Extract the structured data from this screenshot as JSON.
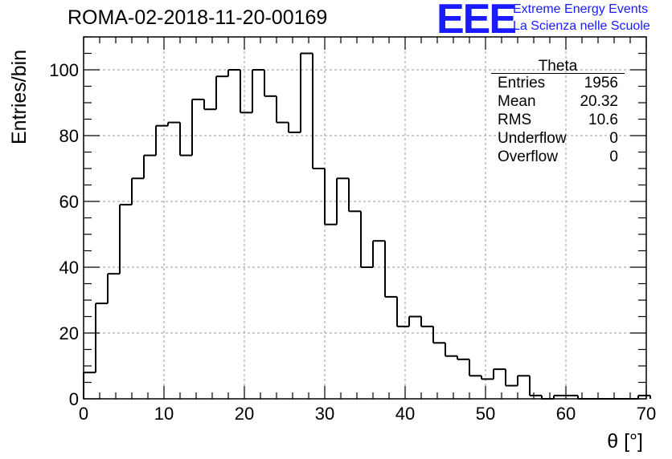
{
  "header": {
    "title": "ROMA-02-2018-11-20-00169"
  },
  "logo": {
    "mark": "EEE",
    "line1": "Extreme Energy Events",
    "line2": "La Scienza nelle Scuole",
    "color": "#1a1aff"
  },
  "stats_box": {
    "title": "Theta",
    "rows": [
      {
        "label": "Entries",
        "value": "1956"
      },
      {
        "label": "Mean",
        "value": "20.32"
      },
      {
        "label": "RMS",
        "value": "10.6"
      },
      {
        "label": "Underflow",
        "value": "0"
      },
      {
        "label": "Overflow",
        "value": "0"
      }
    ]
  },
  "chart_data": {
    "type": "bar",
    "histogram": true,
    "title": "ROMA-02-2018-11-20-00169",
    "xlabel": "θ [°]",
    "ylabel": "Entries/bin",
    "xlim": [
      0,
      70
    ],
    "ylim": [
      0,
      110
    ],
    "bin_width": 1.5,
    "x_start": 0,
    "values": [
      8,
      29,
      38,
      59,
      67,
      74,
      83,
      84,
      74,
      91,
      88,
      98,
      100,
      87,
      100,
      92,
      84,
      81,
      105,
      70,
      53,
      67,
      57,
      40,
      48,
      31,
      22,
      25,
      22,
      17,
      13,
      12,
      7,
      6,
      9,
      4,
      7,
      1,
      0,
      1,
      1,
      0,
      0,
      0,
      0,
      0,
      1
    ],
    "x_ticks": [
      0,
      10,
      20,
      30,
      40,
      50,
      60,
      70
    ],
    "y_ticks": [
      0,
      20,
      40,
      60,
      80,
      100
    ],
    "grid": true,
    "line_color": "#000000"
  }
}
